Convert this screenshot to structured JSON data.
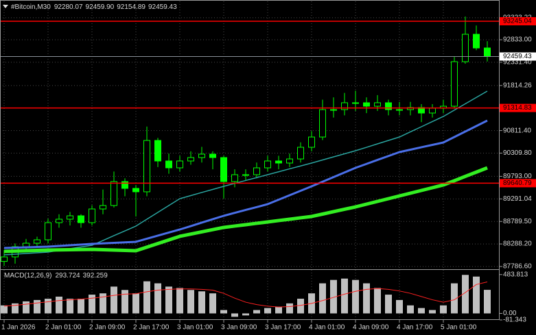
{
  "chart_data": [
    {
      "type": "candlestick",
      "title": "#Bitcoin,M30",
      "quote": [
        {
          "value": 92280.07,
          "label": "92280.07"
        },
        {
          "value": 92459.9,
          "label": "92459.90"
        },
        {
          "value": 92154.89,
          "label": "92154.89"
        },
        {
          "value": 92459.43,
          "label": "92459.43"
        }
      ],
      "categories": [
        "1 Jan 2026",
        null,
        null,
        null,
        "2 Jan 01:00",
        null,
        null,
        null,
        "2 Jan 09:00",
        null,
        null,
        null,
        "2 Jan 17:00",
        null,
        null,
        null,
        "3 Jan 01:00",
        null,
        null,
        null,
        "3 Jan 09:00",
        null,
        null,
        null,
        "3 Jan 17:00",
        null,
        null,
        null,
        "4 Jan 01:00",
        null,
        null,
        null,
        "4 Jan 09:00",
        null,
        null,
        null,
        "4 Jan 17:00",
        null,
        null,
        null,
        "5 Jan 01:00",
        null,
        null,
        null,
        null
      ],
      "open": [
        87900,
        88000,
        88229,
        88305,
        88381,
        88762,
        88839,
        88915,
        88762,
        89067,
        89144,
        89677,
        89525,
        89449,
        90592,
        90135,
        89982,
        90135,
        90211,
        90287,
        90211,
        89677,
        89830,
        89830,
        89982,
        90135,
        90089,
        90180,
        90440,
        90668,
        91278,
        91278,
        91431,
        91431,
        91354,
        91431,
        91278,
        91278,
        91324,
        91202,
        91309,
        91354,
        92345,
        92955,
        92650
      ],
      "high": [
        88150,
        88300,
        88400,
        88450,
        88850,
        88950,
        89000,
        88950,
        89150,
        89500,
        89900,
        89750,
        89600,
        90900,
        90650,
        90300,
        90250,
        90350,
        90450,
        90350,
        90250,
        89950,
        89950,
        90100,
        90250,
        90250,
        90300,
        90550,
        90800,
        91500,
        91550,
        91650,
        91700,
        91550,
        91600,
        91500,
        91450,
        91450,
        91400,
        91400,
        91500,
        92450,
        93350,
        93150,
        92800
      ],
      "low": [
        87800,
        87850,
        88100,
        88200,
        88300,
        88650,
        88700,
        88650,
        88700,
        88950,
        89100,
        89350,
        88900,
        89350,
        90000,
        89850,
        89900,
        90050,
        90100,
        89950,
        89300,
        89550,
        89700,
        89750,
        89900,
        89950,
        90000,
        90100,
        90350,
        90600,
        91100,
        91150,
        91250,
        91200,
        91250,
        91150,
        91150,
        91150,
        91000,
        91100,
        91200,
        91300,
        92300,
        92600,
        92350
      ],
      "close": [
        88000,
        88229,
        88305,
        88381,
        88762,
        88839,
        88915,
        88762,
        89067,
        89144,
        89677,
        89525,
        89449,
        90592,
        90135,
        89982,
        90135,
        90211,
        90287,
        90211,
        89677,
        89830,
        89830,
        89982,
        90135,
        90089,
        90180,
        90440,
        90668,
        91278,
        91278,
        91431,
        91431,
        91354,
        91431,
        91278,
        91278,
        91324,
        91202,
        91309,
        91354,
        92345,
        92955,
        92650,
        92459.43
      ],
      "color": "#00ff00",
      "series": [
        {
          "color": "#2aa5a0",
          "width": 1.5,
          "values": [
            88046,
            88061,
            88077,
            88092,
            88107,
            88145,
            88183,
            88221,
            88259,
            88366,
            88473,
            88579,
            88686,
            88839,
            88991,
            89144,
            89296,
            89365,
            89434,
            89502,
            89571,
            89636,
            89701,
            89765,
            89830,
            89895,
            89960,
            90024,
            90089,
            90158,
            90226,
            90295,
            90363,
            90439,
            90516,
            90592,
            90668,
            90783,
            90897,
            91012,
            91126,
            91267,
            91408,
            91549,
            91690
          ]
        },
        {
          "color": "#4a6fe8",
          "width": 3,
          "values": [
            88198,
            88206,
            88214,
            88221,
            88229,
            88244,
            88260,
            88275,
            88290,
            88302,
            88313,
            88325,
            88336,
            88405,
            88473,
            88542,
            88610,
            88686,
            88763,
            88839,
            88915,
            88980,
            89045,
            89109,
            89174,
            89273,
            89373,
            89472,
            89571,
            89674,
            89777,
            89879,
            89982,
            90070,
            90158,
            90245,
            90333,
            90386,
            90440,
            90493,
            90546,
            90668,
            90790,
            90912,
            91034
          ]
        },
        {
          "color": "#33ee22",
          "width": 5,
          "values": [
            88122,
            88130,
            88138,
            88145,
            88153,
            88157,
            88161,
            88164,
            88168,
            88160,
            88153,
            88145,
            88137,
            88217,
            88298,
            88378,
            88458,
            88508,
            88557,
            88607,
            88656,
            88687,
            88717,
            88748,
            88778,
            88809,
            88839,
            88870,
            88900,
            88953,
            89007,
            89060,
            89113,
            89174,
            89235,
            89296,
            89357,
            89418,
            89479,
            89540,
            89601,
            89696,
            89792,
            89887,
            89982
          ]
        }
      ],
      "hlines": [
        {
          "value": 93245.04,
          "label": "93245.04",
          "color": "#ff0000"
        },
        {
          "value": 91314.83,
          "label": "91314.83",
          "color": "#ff0000"
        },
        {
          "value": 89640.79,
          "label": "89640.79",
          "color": "#ff0000"
        }
      ],
      "last_price": {
        "value": 92459.43,
        "label": "92459.43",
        "color": "#8a9099"
      },
      "ylim": [
        87741,
        93687
      ],
      "yticks": [
        {
          "value": 93323.22,
          "label": "93323.22"
        },
        {
          "value": 92833,
          "label": "92833.00"
        },
        {
          "value": 92331.4,
          "label": "92331.40"
        },
        91814.26,
        {
          "value": 90811.4,
          "label": "90811.40"
        },
        {
          "value": 90309.8,
          "label": "90309.80"
        },
        {
          "value": 89793,
          "label": "89793.00"
        },
        89291.04,
        {
          "value": 88789.5,
          "label": "88789.50"
        },
        {
          "value": 88288.2,
          "label": "88288.20"
        },
        {
          "value": 87786.6,
          "label": "87786.60"
        }
      ],
      "grid": true
    },
    {
      "type": "macd",
      "title": "MACD(12,26,9)",
      "title_values": [
        293.724,
        392.259
      ],
      "values": [
        100,
        125,
        150,
        167,
        183,
        209,
        183,
        183,
        234,
        250,
        334,
        292,
        250,
        400,
        375,
        334,
        317,
        292,
        275,
        250,
        42,
        -42,
        -25,
        42,
        67,
        83,
        125,
        183,
        250,
        375,
        417,
        434,
        417,
        375,
        317,
        234,
        167,
        100,
        67,
        42,
        100,
        375,
        480,
        459,
        293.724
      ],
      "color": "#c0c0c0",
      "signal": {
        "color": "#ff2020",
        "values": [
          90,
          100,
          115,
          130,
          145,
          160,
          170,
          178,
          190,
          205,
          225,
          240,
          245,
          270,
          290,
          300,
          305,
          305,
          300,
          290,
          250,
          190,
          140,
          110,
          90,
          80,
          85,
          100,
          125,
          160,
          200,
          240,
          275,
          300,
          310,
          300,
          280,
          250,
          210,
          170,
          140,
          170,
          260,
          360,
          392.259
        ]
      },
      "ylim": [
        -81.343,
        542
      ],
      "yticks": [
        483.813,
        {
          "value": 0,
          "label": "0.00"
        },
        -81.343
      ]
    }
  ]
}
